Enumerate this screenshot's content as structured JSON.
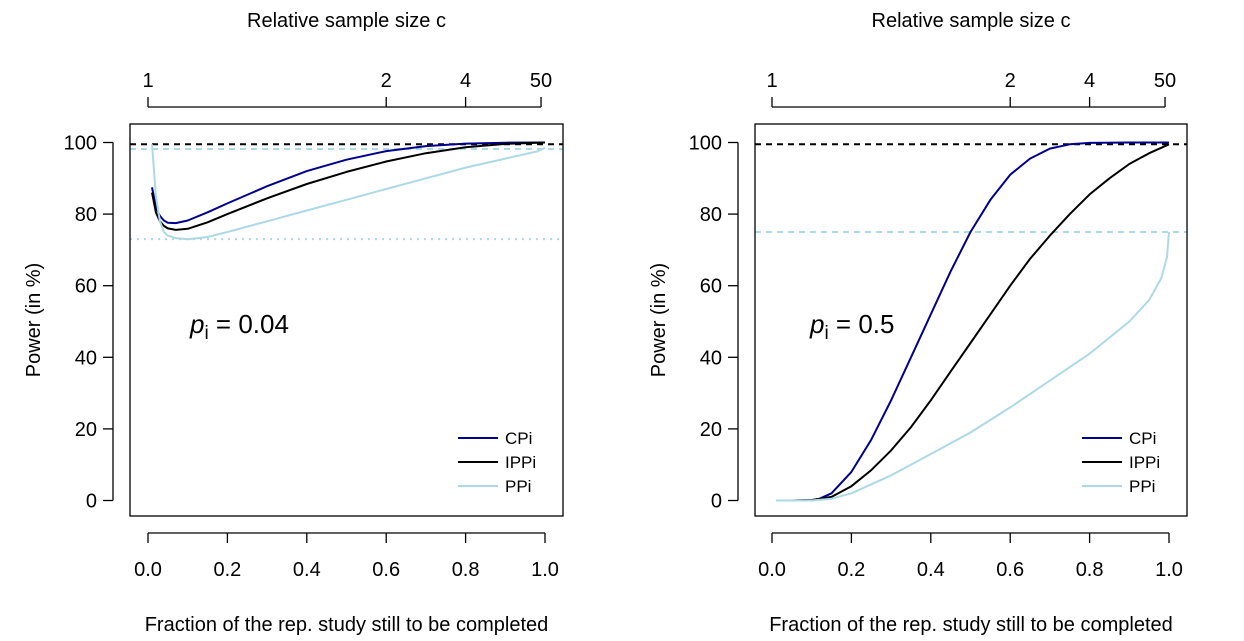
{
  "chart_data": [
    {
      "type": "line",
      "top_axis_label": "Relative sample size c",
      "top_ticks": [
        {
          "label": "1",
          "x": 0.0
        },
        {
          "label": "2",
          "x": 0.6
        },
        {
          "label": "4",
          "x": 0.8
        },
        {
          "label": "50",
          "x": 0.99
        }
      ],
      "xlabel": "Fraction of the rep. study still to be completed",
      "ylabel": "Power (in %)",
      "xlim": [
        0.0,
        1.0
      ],
      "ylim": [
        0,
        100
      ],
      "xticks": [
        "0.0",
        "0.2",
        "0.4",
        "0.6",
        "0.8",
        "1.0"
      ],
      "yticks": [
        "0",
        "20",
        "40",
        "60",
        "80",
        "100"
      ],
      "annotation": {
        "p": "p",
        "sub": "i",
        "rest": " = 0.04"
      },
      "colors": {
        "CPi": "#00008b",
        "IPPi": "#000000",
        "PPi": "#add8e6"
      },
      "legend": {
        "placement": "bottom-right",
        "entries": [
          "CPi",
          "IPPi",
          "PPi"
        ]
      },
      "reference_lines": [
        {
          "y": 99.5,
          "color": "#000000",
          "style": "dashed"
        },
        {
          "y": 98.2,
          "color": "#add8e6",
          "style": "dashed"
        },
        {
          "y": 73.0,
          "color": "#add8e6",
          "style": "dotted"
        }
      ],
      "series": [
        {
          "name": "CPi",
          "color": "#00008b",
          "x": [
            0.01,
            0.02,
            0.03,
            0.04,
            0.05,
            0.07,
            0.1,
            0.15,
            0.2,
            0.3,
            0.4,
            0.5,
            0.6,
            0.7,
            0.8,
            0.9,
            1.0
          ],
          "y": [
            87.5,
            82.0,
            79.5,
            78.2,
            77.6,
            77.5,
            78.2,
            80.5,
            83.0,
            87.8,
            92.0,
            95.2,
            97.6,
            99.0,
            99.7,
            99.95,
            100
          ]
        },
        {
          "name": "IPPi",
          "color": "#000000",
          "x": [
            0.01,
            0.02,
            0.03,
            0.04,
            0.05,
            0.07,
            0.1,
            0.15,
            0.2,
            0.3,
            0.4,
            0.5,
            0.6,
            0.7,
            0.8,
            0.9,
            1.0
          ],
          "y": [
            86.0,
            80.5,
            78.0,
            76.7,
            76.0,
            75.6,
            75.9,
            77.7,
            80.0,
            84.4,
            88.4,
            91.8,
            94.7,
            97.0,
            98.7,
            99.6,
            100
          ]
        },
        {
          "name": "PPi",
          "color": "#add8e6",
          "x": [
            0.01,
            0.02,
            0.03,
            0.04,
            0.05,
            0.07,
            0.1,
            0.15,
            0.2,
            0.3,
            0.4,
            0.5,
            0.6,
            0.7,
            0.8,
            0.9,
            0.98,
            1.0
          ],
          "y": [
            99.5,
            85.0,
            78.0,
            75.0,
            74.0,
            73.3,
            73.0,
            73.6,
            75.0,
            78.0,
            81.0,
            84.0,
            87.0,
            90.0,
            93.0,
            95.5,
            97.5,
            98.5
          ]
        }
      ]
    },
    {
      "type": "line",
      "top_axis_label": "Relative sample size c",
      "top_ticks": [
        {
          "label": "1",
          "x": 0.0
        },
        {
          "label": "2",
          "x": 0.6
        },
        {
          "label": "4",
          "x": 0.8
        },
        {
          "label": "50",
          "x": 0.99
        }
      ],
      "xlabel": "Fraction of the rep. study still to be completed",
      "ylabel": "Power (in %)",
      "xlim": [
        0.0,
        1.0
      ],
      "ylim": [
        0,
        100
      ],
      "xticks": [
        "0.0",
        "0.2",
        "0.4",
        "0.6",
        "0.8",
        "1.0"
      ],
      "yticks": [
        "0",
        "20",
        "40",
        "60",
        "80",
        "100"
      ],
      "annotation": {
        "p": "p",
        "sub": "i",
        "rest": " = 0.5"
      },
      "colors": {
        "CPi": "#00008b",
        "IPPi": "#000000",
        "PPi": "#add8e6"
      },
      "legend": {
        "placement": "bottom-right",
        "entries": [
          "CPi",
          "IPPi",
          "PPi"
        ]
      },
      "reference_lines": [
        {
          "y": 99.5,
          "color": "#000000",
          "style": "dashed"
        },
        {
          "y": 75.0,
          "color": "#add8e6",
          "style": "dashed"
        }
      ],
      "series": [
        {
          "name": "CPi",
          "color": "#00008b",
          "x": [
            0.01,
            0.05,
            0.1,
            0.12,
            0.15,
            0.2,
            0.25,
            0.3,
            0.35,
            0.4,
            0.45,
            0.5,
            0.55,
            0.6,
            0.65,
            0.7,
            0.75,
            0.8,
            0.9,
            1.0
          ],
          "y": [
            0,
            0,
            0.1,
            0.5,
            2,
            8,
            17,
            28,
            40,
            52,
            64,
            75,
            84,
            91,
            95.5,
            98.3,
            99.5,
            99.9,
            100,
            100
          ]
        },
        {
          "name": "IPPi",
          "color": "#000000",
          "x": [
            0.01,
            0.05,
            0.1,
            0.15,
            0.2,
            0.25,
            0.3,
            0.35,
            0.4,
            0.45,
            0.5,
            0.55,
            0.6,
            0.65,
            0.7,
            0.75,
            0.8,
            0.85,
            0.9,
            0.95,
            1.0
          ],
          "y": [
            0,
            0,
            0.1,
            1,
            4,
            8.5,
            14,
            20.5,
            28,
            36,
            44,
            52,
            60,
            67.5,
            74,
            80,
            85.5,
            90,
            94,
            97,
            99.5
          ]
        },
        {
          "name": "PPi",
          "color": "#add8e6",
          "x": [
            0.01,
            0.1,
            0.15,
            0.2,
            0.3,
            0.4,
            0.5,
            0.6,
            0.7,
            0.8,
            0.9,
            0.95,
            0.98,
            0.995,
            1.0
          ],
          "y": [
            0,
            0,
            0.5,
            2,
            7,
            13,
            19,
            26,
            33.5,
            41,
            50,
            56,
            62,
            68,
            75
          ]
        }
      ]
    }
  ]
}
